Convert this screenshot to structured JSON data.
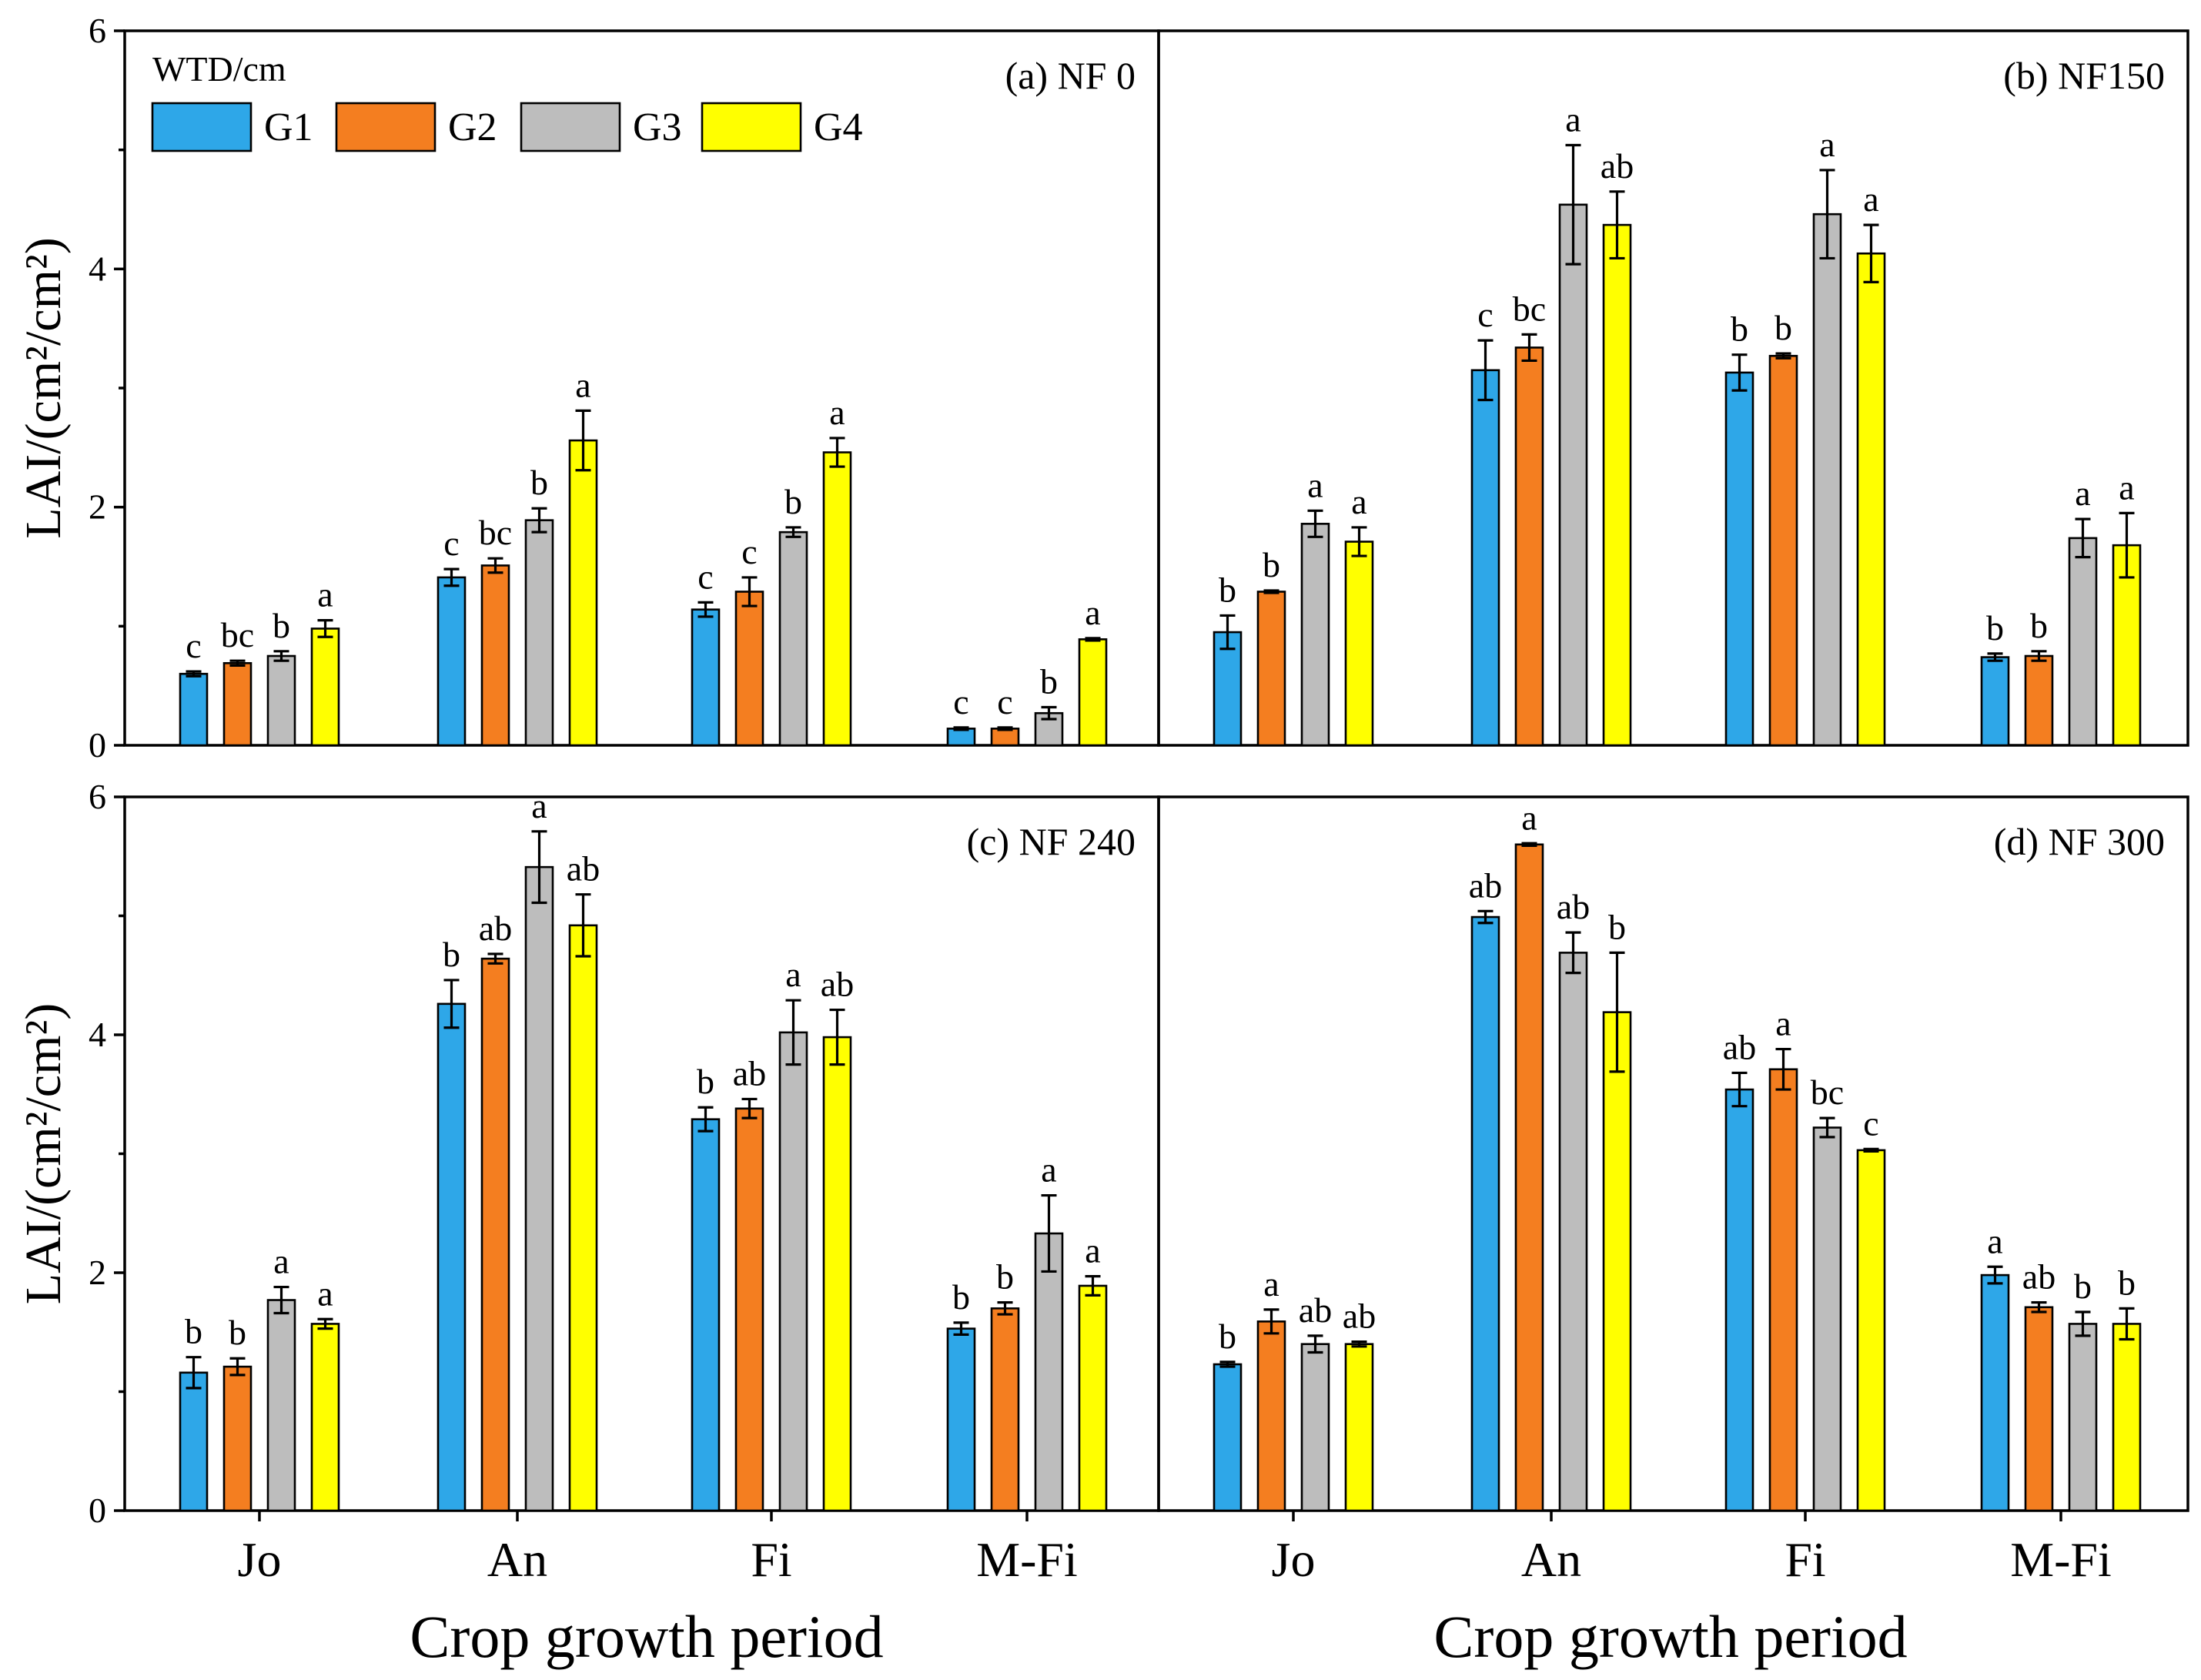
{
  "chart_data": {
    "type": "bar",
    "categories": [
      "Jo",
      "An",
      "Fi",
      "M-Fi"
    ],
    "xlabel": "Crop growth period",
    "ylabel": "LAI/(cm²/cm²)",
    "ylim": [
      0,
      6
    ],
    "yticks": [
      "0",
      "2",
      "4",
      "6"
    ],
    "legend": {
      "title": "WTD/cm",
      "position": "top-left",
      "entries": [
        "G1",
        "G2",
        "G3",
        "G4"
      ]
    },
    "series_colors": {
      "G1": "#2EA7E8",
      "G2": "#F47E20",
      "G3": "#BDBDBD",
      "G4": "#FFFF00"
    },
    "panels": [
      {
        "title": "(a) NF 0",
        "series": [
          {
            "name": "G1",
            "values": [
              0.6,
              1.41,
              1.14,
              0.14
            ],
            "errors": [
              0.02,
              0.07,
              0.06,
              0.01
            ],
            "letters": [
              "c",
              "c",
              "c",
              "c"
            ]
          },
          {
            "name": "G2",
            "values": [
              0.69,
              1.51,
              1.29,
              0.14
            ],
            "errors": [
              0.02,
              0.06,
              0.12,
              0.01
            ],
            "letters": [
              "bc",
              "bc",
              "c",
              "c"
            ]
          },
          {
            "name": "G3",
            "values": [
              0.75,
              1.89,
              1.79,
              0.27
            ],
            "errors": [
              0.04,
              0.1,
              0.04,
              0.05
            ],
            "letters": [
              "b",
              "b",
              "b",
              "b"
            ]
          },
          {
            "name": "G4",
            "values": [
              0.98,
              2.56,
              2.46,
              0.89
            ],
            "errors": [
              0.07,
              0.25,
              0.12,
              0.01
            ],
            "letters": [
              "a",
              "a",
              "a",
              "a"
            ]
          }
        ]
      },
      {
        "title": "(b) NF150",
        "series": [
          {
            "name": "G1",
            "values": [
              0.95,
              3.15,
              3.13,
              0.74
            ],
            "errors": [
              0.14,
              0.25,
              0.15,
              0.03
            ],
            "letters": [
              "b",
              "c",
              "b",
              "b"
            ]
          },
          {
            "name": "G2",
            "values": [
              1.29,
              3.34,
              3.27,
              0.75
            ],
            "errors": [
              0.01,
              0.11,
              0.02,
              0.04
            ],
            "letters": [
              "b",
              "bc",
              "b",
              "b"
            ]
          },
          {
            "name": "G3",
            "values": [
              1.86,
              4.54,
              4.46,
              1.74
            ],
            "errors": [
              0.11,
              0.5,
              0.37,
              0.16
            ],
            "letters": [
              "a",
              "a",
              "a",
              "a"
            ]
          },
          {
            "name": "G4",
            "values": [
              1.71,
              4.37,
              4.13,
              1.68
            ],
            "errors": [
              0.12,
              0.28,
              0.24,
              0.27
            ],
            "letters": [
              "a",
              "ab",
              "a",
              "a"
            ]
          }
        ]
      },
      {
        "title": "(c) NF 240",
        "series": [
          {
            "name": "G1",
            "values": [
              1.16,
              4.26,
              3.29,
              1.53
            ],
            "errors": [
              0.13,
              0.2,
              0.1,
              0.05
            ],
            "letters": [
              "b",
              "b",
              "b",
              "b"
            ]
          },
          {
            "name": "G2",
            "values": [
              1.21,
              4.64,
              3.38,
              1.7
            ],
            "errors": [
              0.07,
              0.04,
              0.08,
              0.05
            ],
            "letters": [
              "b",
              "ab",
              "ab",
              "b"
            ]
          },
          {
            "name": "G3",
            "values": [
              1.77,
              5.41,
              4.02,
              2.33
            ],
            "errors": [
              0.11,
              0.3,
              0.27,
              0.32
            ],
            "letters": [
              "a",
              "a",
              "a",
              "a"
            ]
          },
          {
            "name": "G4",
            "values": [
              1.57,
              4.92,
              3.98,
              1.89
            ],
            "errors": [
              0.04,
              0.26,
              0.23,
              0.08
            ],
            "letters": [
              "a",
              "ab",
              "ab",
              "a"
            ]
          }
        ]
      },
      {
        "title": "(d) NF 300",
        "series": [
          {
            "name": "G1",
            "values": [
              1.23,
              4.99,
              3.54,
              1.98
            ],
            "errors": [
              0.02,
              0.05,
              0.14,
              0.07
            ],
            "letters": [
              "b",
              "ab",
              "ab",
              "a"
            ]
          },
          {
            "name": "G2",
            "values": [
              1.59,
              5.6,
              3.71,
              1.71
            ],
            "errors": [
              0.1,
              0.01,
              0.17,
              0.04
            ],
            "letters": [
              "a",
              "a",
              "a",
              "ab"
            ]
          },
          {
            "name": "G3",
            "values": [
              1.4,
              4.69,
              3.22,
              1.57
            ],
            "errors": [
              0.07,
              0.17,
              0.08,
              0.1
            ],
            "letters": [
              "ab",
              "ab",
              "bc",
              "b"
            ]
          },
          {
            "name": "G4",
            "values": [
              1.4,
              4.19,
              3.03,
              1.57
            ],
            "errors": [
              0.02,
              0.5,
              0.01,
              0.13
            ],
            "letters": [
              "ab",
              "b",
              "c",
              "b"
            ]
          }
        ]
      }
    ]
  }
}
